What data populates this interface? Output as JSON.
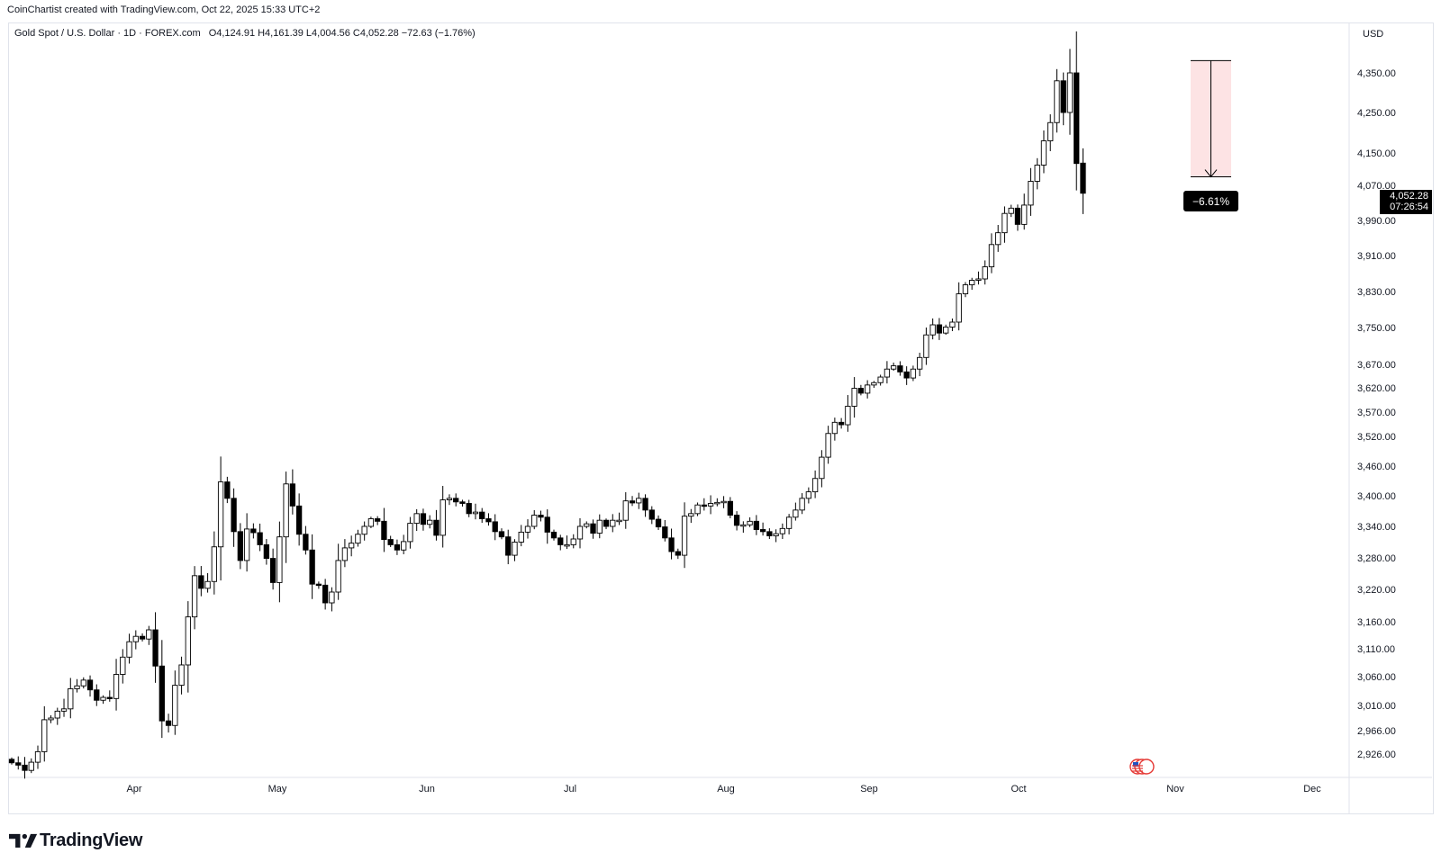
{
  "attribution": "CoinChartist created with TradingView.com, Oct 22, 2025 15:33 UTC+2",
  "legend": {
    "pair": "Gold Spot / U.S. Dollar · 1D · FOREX.com",
    "ohlc": "O4,124.91  H4,161.39  L4,004.56  C4,052.28  −72.63 (−1.76%)"
  },
  "price_axis": {
    "unit": "USD",
    "last_price": "4,052.28",
    "countdown": "07:26:54"
  },
  "measure_label": "−6.61%",
  "brand": "TradingView",
  "colors": {
    "up_body": "#ffffff",
    "down_body": "#000000",
    "wick": "#000000",
    "measure_fill": "#fde3e4",
    "measure_border": "#000000",
    "price_tag": "#000000"
  },
  "chart_data": {
    "type": "candlestick",
    "symbol": "Gold Spot / U.S. Dollar",
    "interval": "1D",
    "x_labels": [
      "Apr",
      "May",
      "Jun",
      "Jul",
      "Aug",
      "Sep",
      "Oct",
      "Nov",
      "Dec"
    ],
    "y_ticks": [
      "2,926.00",
      "2,966.00",
      "3,010.00",
      "3,060.00",
      "3,110.00",
      "3,160.00",
      "3,220.00",
      "3,280.00",
      "3,340.00",
      "3,400.00",
      "3,460.00",
      "3,520.00",
      "3,570.00",
      "3,620.00",
      "3,670.00",
      "3,750.00",
      "3,830.00",
      "3,910.00",
      "3,990.00",
      "4,070.00",
      "4,150.00",
      "4,250.00",
      "4,350.00"
    ],
    "y_scale": "log",
    "closes": [
      2911,
      2907,
      2898,
      2912,
      2930,
      2985,
      2988,
      3000,
      3004,
      3039,
      3044,
      3054,
      3037,
      3019,
      3024,
      3022,
      3064,
      3095,
      3123,
      3133,
      3128,
      3145,
      3079,
      2983,
      2975,
      3045,
      3081,
      3169,
      3246,
      3222,
      3235,
      3301,
      3428,
      3395,
      3330,
      3275,
      3335,
      3328,
      3305,
      3279,
      3233,
      3320,
      3424,
      3380,
      3325,
      3295,
      3230,
      3228,
      3195,
      3215,
      3275,
      3299,
      3308,
      3325,
      3340,
      3355,
      3350,
      3315,
      3305,
      3295,
      3311,
      3346,
      3365,
      3344,
      3352,
      3323,
      3392,
      3395,
      3388,
      3385,
      3365,
      3368,
      3355,
      3349,
      3330,
      3320,
      3285,
      3310,
      3329,
      3340,
      3362,
      3358,
      3329,
      3318,
      3305,
      3305,
      3316,
      3340,
      3345,
      3327,
      3352,
      3340,
      3352,
      3352,
      3390,
      3386,
      3395,
      3372,
      3354,
      3339,
      3318,
      3292,
      3285,
      3360,
      3365,
      3382,
      3380,
      3385,
      3387,
      3389,
      3362,
      3342,
      3343,
      3350,
      3334,
      3330,
      3322,
      3326,
      3336,
      3358,
      3372,
      3395,
      3408,
      3435,
      3478,
      3526,
      3549,
      3544,
      3582,
      3619,
      3609,
      3626,
      3631,
      3643,
      3660,
      3667,
      3654,
      3641,
      3660,
      3685,
      3734,
      3756,
      3738,
      3751,
      3762,
      3825,
      3845,
      3855,
      3858,
      3885,
      3935,
      3962,
      4006,
      4018,
      3981,
      4025,
      4080,
      4120,
      4180,
      4225,
      4330,
      4250,
      4350,
      4124,
      4052
    ],
    "last": {
      "open": 4124.91,
      "high": 4161.39,
      "low": 4004.56,
      "close": 4052.28,
      "change": -72.63,
      "change_pct": -1.76
    },
    "measure": {
      "from": 4381,
      "to": 4091,
      "change_pct": -6.61
    }
  }
}
